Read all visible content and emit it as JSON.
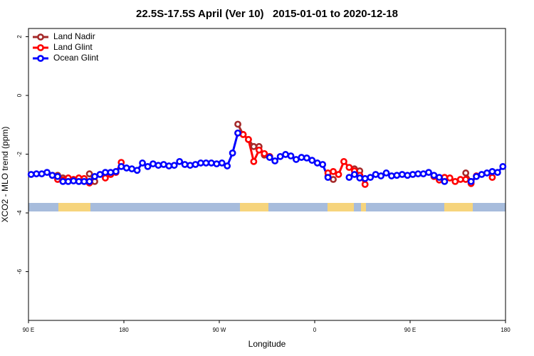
{
  "chart_data": {
    "type": "line",
    "title": "22.5S-17.5S April (Ver 10)   2015-01-01 to 2020-12-18",
    "x_label": "Longitude",
    "y_label": "XCO2 - MLO trend (ppm)",
    "xlim": [
      90,
      540
    ],
    "xticks": [
      {
        "value": 90,
        "label": "90 E"
      },
      180,
      {
        "value": 270,
        "label": "90 W"
      },
      {
        "value": 360,
        "label": "0"
      },
      {
        "value": 450,
        "label": "90 E"
      },
      {
        "value": 540,
        "label": "180"
      }
    ],
    "ylim": [
      2.28,
      -7.66
    ],
    "yticks": [
      2,
      0,
      -2,
      -4,
      -6
    ],
    "legend": "top-left",
    "x": [
      92.5,
      97.5,
      102.5,
      107.5,
      112.5,
      117.5,
      122.5,
      127.5,
      132.5,
      137.5,
      142.5,
      147.5,
      152.5,
      157.5,
      162.5,
      167.5,
      172.5,
      177.5,
      182.5,
      187.5,
      192.5,
      197.5,
      202.5,
      207.5,
      212.5,
      217.5,
      222.5,
      227.5,
      232.5,
      237.5,
      242.5,
      247.5,
      252.5,
      257.5,
      262.5,
      267.5,
      272.5,
      277.5,
      282.5,
      287.5,
      292.5,
      297.5,
      302.5,
      307.5,
      312.5,
      317.5,
      322.5,
      327.5,
      332.5,
      337.5,
      342.5,
      347.5,
      352.5,
      357.5,
      362.5,
      367.5,
      372.5,
      377.5,
      382.5,
      387.5,
      392.5,
      397.5,
      402.5,
      407.5,
      412.5,
      417.5,
      422.5,
      427.5,
      432.5,
      437.5,
      442.5,
      447.5,
      452.5,
      457.5,
      462.5,
      467.5,
      472.5,
      477.5,
      482.5,
      487.5,
      492.5,
      497.5,
      502.5,
      507.5,
      512.5,
      517.5,
      522.5,
      527.5,
      532.5,
      537.5
    ],
    "series": [
      {
        "name": "Land Nadir",
        "color": "#a52a2a",
        "values": [
          null,
          null,
          null,
          null,
          null,
          -2.72,
          -2.81,
          null,
          null,
          null,
          null,
          -2.67,
          -2.93,
          null,
          null,
          null,
          null,
          null,
          null,
          null,
          null,
          null,
          null,
          null,
          null,
          null,
          null,
          null,
          null,
          null,
          null,
          null,
          null,
          null,
          null,
          null,
          null,
          null,
          null,
          -0.98,
          -1.33,
          -1.5,
          -1.74,
          -1.74,
          -2.03,
          -2.08,
          null,
          null,
          null,
          null,
          null,
          null,
          null,
          null,
          null,
          null,
          -2.76,
          -2.86,
          null,
          null,
          null,
          -2.5,
          -2.57,
          null,
          null,
          null,
          null,
          null,
          null,
          null,
          null,
          null,
          null,
          null,
          null,
          null,
          null,
          null,
          null,
          null,
          null,
          null,
          -2.64,
          -2.93,
          null,
          null,
          null,
          null,
          null,
          null
        ]
      },
      {
        "name": "Land Glint",
        "color": "#ff0000",
        "values": [
          null,
          null,
          null,
          null,
          -2.72,
          -2.86,
          -2.88,
          -2.81,
          -2.86,
          -2.81,
          -2.83,
          -2.98,
          null,
          null,
          -2.81,
          -2.69,
          -2.62,
          -2.28,
          null,
          null,
          null,
          null,
          null,
          null,
          null,
          null,
          null,
          null,
          null,
          null,
          null,
          null,
          null,
          null,
          null,
          null,
          null,
          null,
          null,
          -1.28,
          -1.33,
          -1.5,
          -2.25,
          -1.86,
          -1.98,
          -2.08,
          null,
          null,
          null,
          null,
          null,
          null,
          null,
          null,
          null,
          null,
          -2.64,
          -2.59,
          -2.69,
          -2.25,
          -2.45,
          -2.57,
          -2.72,
          -3.03,
          null,
          null,
          null,
          null,
          null,
          null,
          null,
          null,
          null,
          null,
          null,
          null,
          -2.76,
          -2.88,
          -2.79,
          -2.81,
          -2.93,
          -2.86,
          -2.86,
          -3.0,
          -2.74,
          null,
          null,
          -2.79,
          null,
          null
        ]
      },
      {
        "name": "Ocean Glint",
        "color": "#0000ff",
        "values": [
          -2.69,
          -2.67,
          -2.67,
          -2.62,
          -2.72,
          -2.76,
          -2.93,
          -2.93,
          -2.91,
          -2.93,
          -2.93,
          -2.93,
          -2.76,
          -2.69,
          -2.62,
          -2.62,
          -2.59,
          -2.42,
          -2.47,
          -2.5,
          -2.55,
          -2.3,
          -2.42,
          -2.33,
          -2.38,
          -2.35,
          -2.4,
          -2.38,
          -2.25,
          -2.35,
          -2.38,
          -2.35,
          -2.3,
          -2.3,
          -2.3,
          -2.33,
          -2.3,
          -2.4,
          -1.96,
          -1.28,
          null,
          null,
          null,
          null,
          null,
          -2.11,
          -2.23,
          -2.08,
          -2.01,
          -2.06,
          -2.18,
          -2.11,
          -2.13,
          -2.21,
          -2.3,
          -2.35,
          -2.79,
          null,
          null,
          null,
          -2.79,
          -2.69,
          -2.81,
          -2.83,
          -2.79,
          -2.69,
          -2.74,
          -2.64,
          -2.74,
          -2.72,
          -2.69,
          -2.72,
          -2.69,
          -2.67,
          -2.67,
          -2.62,
          -2.72,
          -2.79,
          -2.93,
          null,
          null,
          null,
          null,
          -2.93,
          -2.76,
          -2.69,
          -2.64,
          -2.59,
          -2.62,
          -2.42
        ]
      }
    ]
  }
}
